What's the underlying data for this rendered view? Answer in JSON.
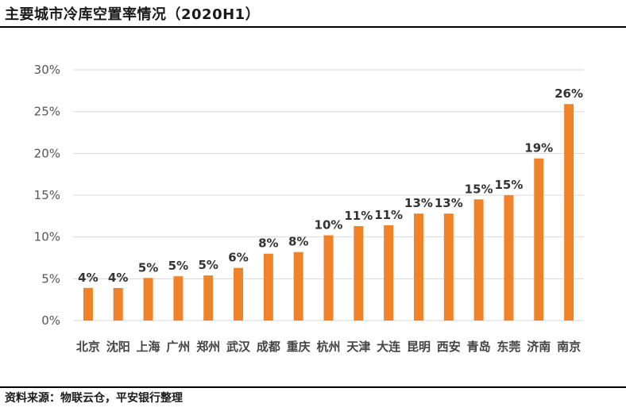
{
  "title": "主要城市冷库空置率情况（2020H1）",
  "source": "资料来源：物联云仓，平安银行整理",
  "chart_data": {
    "type": "bar",
    "categories": [
      "北京",
      "沈阳",
      "上海",
      "广州",
      "郑州",
      "武汉",
      "成都",
      "重庆",
      "杭州",
      "天津",
      "大连",
      "昆明",
      "西安",
      "青岛",
      "东莞",
      "济南",
      "南京"
    ],
    "values": [
      3.9,
      3.9,
      5.1,
      5.3,
      5.4,
      6.3,
      8.0,
      8.2,
      10.2,
      11.3,
      11.4,
      12.8,
      12.8,
      14.5,
      15.0,
      19.4,
      25.9
    ],
    "data_labels": [
      "4%",
      "4%",
      "5%",
      "5%",
      "5%",
      "6%",
      "8%",
      "8%",
      "10%",
      "11%",
      "11%",
      "13%",
      "13%",
      "15%",
      "15%",
      "19%",
      "26%"
    ],
    "ylim": [
      0,
      30
    ],
    "yticks": [
      0,
      5,
      10,
      15,
      20,
      25,
      30
    ],
    "ytick_labels": [
      "0%",
      "5%",
      "10%",
      "15%",
      "20%",
      "25%",
      "30%"
    ],
    "grid": true,
    "bar_color": "#F0832A",
    "grid_color": "#d9d9d9"
  }
}
